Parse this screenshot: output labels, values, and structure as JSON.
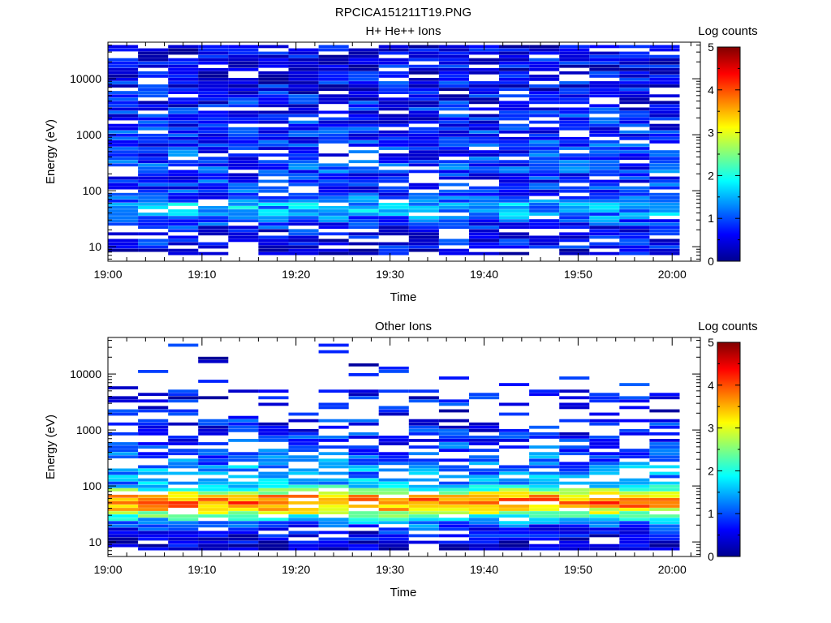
{
  "figure_title": "RPCICA151211T19.PNG",
  "chart_data": [
    {
      "type": "heatmap",
      "title": "H+ He++ Ions",
      "xlabel": "Time",
      "ylabel": "Energy (eV)",
      "x_ticks": [
        "19:00",
        "19:10",
        "19:20",
        "19:30",
        "19:40",
        "19:50",
        "20:00"
      ],
      "x_range_minutes": [
        0,
        63
      ],
      "y_scale": "log",
      "y_range": [
        5.5,
        45000
      ],
      "y_ticks": [
        10,
        100,
        1000,
        10000
      ],
      "y_tick_labels": [
        "10",
        "100",
        "1000",
        "10000"
      ],
      "colorbar": {
        "label": "Log counts",
        "range": [
          0,
          5
        ],
        "ticks": [
          "0",
          "1",
          "2",
          "3",
          "4",
          "5"
        ]
      },
      "time_bin_minutes": 3.2,
      "columns": 19,
      "energy_profile": [
        {
          "e": 8,
          "v": 0.4
        },
        {
          "e": 11,
          "v": 0.6
        },
        {
          "e": 15,
          "v": 0.6
        },
        {
          "e": 22,
          "v": 0.7
        },
        {
          "e": 30,
          "v": 1.0
        },
        {
          "e": 40,
          "v": 1.4
        },
        {
          "e": 55,
          "v": 1.5
        },
        {
          "e": 75,
          "v": 1.0
        },
        {
          "e": 110,
          "v": 0.8
        },
        {
          "e": 300,
          "v": 0.9
        },
        {
          "e": 1000,
          "v": 0.8
        },
        {
          "e": 5000,
          "v": 0.6
        },
        {
          "e": 40000,
          "v": 0.5
        }
      ],
      "grid": false,
      "legend": "colorbar-right"
    },
    {
      "type": "heatmap",
      "title": "Other Ions",
      "xlabel": "Time",
      "ylabel": "Energy (eV)",
      "x_ticks": [
        "19:00",
        "19:10",
        "19:20",
        "19:30",
        "19:40",
        "19:50",
        "20:00"
      ],
      "x_range_minutes": [
        0,
        63
      ],
      "y_scale": "log",
      "y_range": [
        5.5,
        45000
      ],
      "y_ticks": [
        10,
        100,
        1000,
        10000
      ],
      "y_tick_labels": [
        "10",
        "100",
        "1000",
        "10000"
      ],
      "colorbar": {
        "label": "Log counts",
        "range": [
          0,
          5
        ],
        "ticks": [
          "0",
          "1",
          "2",
          "3",
          "4",
          "5"
        ]
      },
      "time_bin_minutes": 3.2,
      "columns": 19,
      "energy_profile": [
        {
          "e": 9,
          "v": 0.3
        },
        {
          "e": 15,
          "v": 0.6
        },
        {
          "e": 22,
          "v": 1.2
        },
        {
          "e": 30,
          "v": 2.4
        },
        {
          "e": 40,
          "v": 3.4
        },
        {
          "e": 52,
          "v": 3.9
        },
        {
          "e": 65,
          "v": 3.4
        },
        {
          "e": 85,
          "v": 2.3
        },
        {
          "e": 110,
          "v": 1.4
        },
        {
          "e": 200,
          "v": 1.3
        },
        {
          "e": 400,
          "v": 1.0
        },
        {
          "e": 1000,
          "v": 0.7
        },
        {
          "e": 3000,
          "v": 0.6
        },
        {
          "e": 20000,
          "v": 0.5
        }
      ],
      "grid": false,
      "legend": "colorbar-right"
    }
  ]
}
